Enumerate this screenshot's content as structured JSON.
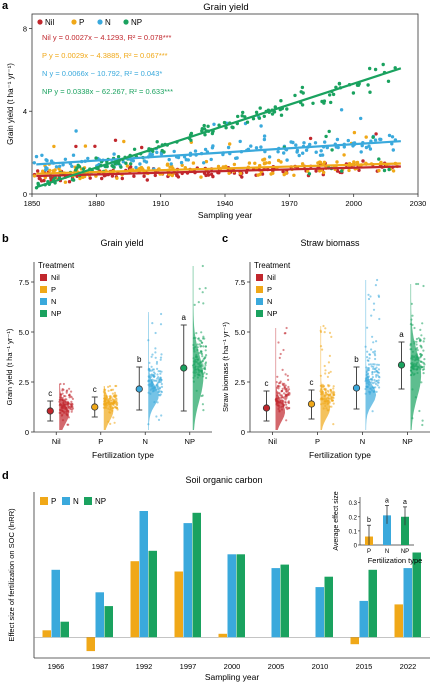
{
  "colors": {
    "nil": "#c1272d",
    "p": "#f0a818",
    "n": "#3aa9dc",
    "np": "#1aa25f",
    "axis": "#333333"
  },
  "panels": {
    "a": {
      "letter": "a",
      "title": "Grain yield"
    },
    "b": {
      "letter": "b",
      "title": "Grain yield"
    },
    "c": {
      "letter": "c",
      "title": "Straw biomass"
    },
    "d": {
      "letter": "d",
      "title": "Soil organic carbon"
    }
  },
  "chart_data": [
    {
      "id": "a",
      "type": "scatter",
      "title": "Grain yield",
      "xlabel": "Sampling year",
      "ylabel": "Grain yield (t ha⁻¹ yr⁻¹)",
      "xlim": [
        1850,
        2030
      ],
      "ylim": [
        0,
        8.7
      ],
      "xticks": [
        1850,
        1880,
        1910,
        1940,
        1970,
        2000,
        2030
      ],
      "yticks": [
        0,
        4,
        8
      ],
      "legend_position": "top-left",
      "series": [
        {
          "name": "Nil",
          "key": "nil",
          "equation": "Nil y = 0.0027x − 4.1293, R² = 0.078***",
          "slope": 0.0027,
          "intercept": -4.1293,
          "mean": 1.0,
          "spread": 0.3,
          "n_points": 150
        },
        {
          "name": "P",
          "key": "p",
          "equation": "P y = 0.0029x − 4.3885, R² = 0.067***",
          "slope": 0.0029,
          "intercept": -4.3885,
          "mean": 1.1,
          "spread": 0.4,
          "n_points": 150
        },
        {
          "name": "N",
          "key": "n",
          "equation": "N y = 0.0066x − 10.792, R² = 0.043*",
          "slope": 0.0066,
          "intercept": -10.792,
          "mean": 1.6,
          "spread": 0.5,
          "n_points": 150
        },
        {
          "name": "NP",
          "key": "np",
          "equation": "NP y = 0.0338x − 62.267, R² = 0.633***",
          "slope": 0.0338,
          "intercept": -62.267,
          "mean": 2.0,
          "spread": 1.0,
          "n_points": 160
        }
      ]
    },
    {
      "id": "b",
      "type": "scatter",
      "title": "Grain yield",
      "xlabel": "Fertilization type",
      "ylabel": "Grain yield (t ha⁻¹ yr⁻¹)",
      "ylim": [
        0,
        8.5
      ],
      "yticks": [
        0,
        2.5,
        5.0,
        7.5
      ],
      "legend_title": "Treatment",
      "categories": [
        "Nil",
        "P",
        "N",
        "NP"
      ],
      "means": [
        1.05,
        1.25,
        2.15,
        3.2
      ],
      "lower": [
        0.55,
        0.75,
        1.1,
        1.05
      ],
      "upper": [
        1.55,
        1.75,
        3.25,
        5.35
      ],
      "letters": [
        "c",
        "c",
        "b",
        "a"
      ],
      "dist_max": [
        2.4,
        2.3,
        6.0,
        8.3
      ]
    },
    {
      "id": "c",
      "type": "scatter",
      "title": "Straw biomass",
      "xlabel": "Fertilization type",
      "ylabel": "Straw biomass (t ha⁻¹ yr⁻¹)",
      "ylim": [
        0,
        8.5
      ],
      "yticks": [
        0,
        2.5,
        5.0,
        7.5
      ],
      "legend_title": "Treatment",
      "categories": [
        "Nil",
        "P",
        "N",
        "NP"
      ],
      "means": [
        1.2,
        1.4,
        2.2,
        3.35
      ],
      "lower": [
        0.55,
        0.65,
        1.15,
        2.15
      ],
      "upper": [
        2.05,
        2.1,
        3.25,
        4.5
      ],
      "letters": [
        "c",
        "c",
        "b",
        "a"
      ],
      "dist_max": [
        5.2,
        5.3,
        7.6,
        7.4
      ]
    },
    {
      "id": "d",
      "type": "bar",
      "title": "Soil organic carbon",
      "xlabel": "Sampling year",
      "ylabel": "Effect size of fertilization on SOC (lnRR)",
      "ylim": [
        -0.06,
        0.42
      ],
      "yticks": [],
      "categories": [
        "1966",
        "1987",
        "1992",
        "1997",
        "2000",
        "2005",
        "2010",
        "2015",
        "2022"
      ],
      "series": [
        {
          "name": "P",
          "key": "p",
          "values": [
            0.02,
            -0.04,
            0.22,
            0.19,
            0.01,
            null,
            null,
            -0.02,
            0.095
          ]
        },
        {
          "name": "N",
          "key": "n",
          "values": [
            0.195,
            0.13,
            0.365,
            0.33,
            0.24,
            0.2,
            0.145,
            0.105,
            0.2
          ]
        },
        {
          "name": "NP",
          "key": "np",
          "values": [
            0.045,
            0.09,
            0.25,
            0.36,
            0.24,
            0.21,
            0.175,
            0.195,
            0.245
          ]
        }
      ],
      "inset": {
        "ylabel": "Average effect size",
        "xlabel": "Fertilization type",
        "ylim": [
          0,
          0.34
        ],
        "yticks": [
          0,
          0.1,
          0.2,
          0.3
        ],
        "categories": [
          "P",
          "N",
          "NP"
        ],
        "keys": [
          "p",
          "n",
          "np"
        ],
        "values": [
          0.06,
          0.21,
          0.2
        ],
        "err_low": [
          0.0,
          0.15,
          0.14
        ],
        "err_high": [
          0.14,
          0.28,
          0.27
        ],
        "letters": [
          "b",
          "a",
          "a"
        ]
      }
    }
  ]
}
